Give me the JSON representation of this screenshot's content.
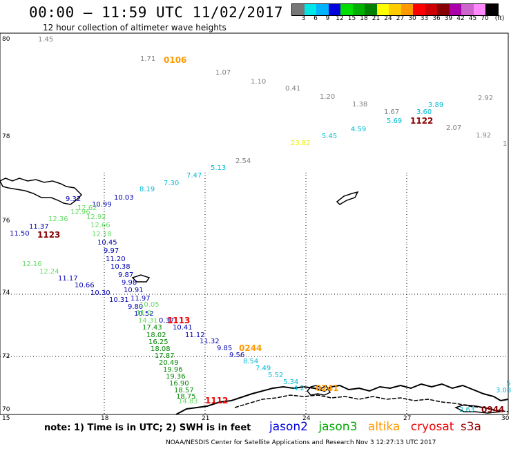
{
  "title": "00:00 – 11:59 UTC 11/02/2017",
  "subtitle": "12 hour collection of altimeter wave heights",
  "colorbar": {
    "colors": [
      "#777777",
      "#00e5e5",
      "#00b3ff",
      "#0000dd",
      "#00dd00",
      "#00b000",
      "#008000",
      "#ffff00",
      "#ffcc00",
      "#ff9900",
      "#ff0000",
      "#cc0000",
      "#880000",
      "#aa00aa",
      "#cc66cc",
      "#ff88ff",
      "#000000"
    ],
    "labels": [
      "3",
      "6",
      "9",
      "12",
      "15",
      "18",
      "21",
      "24",
      "27",
      "30",
      "33",
      "36",
      "39",
      "42",
      "45",
      "70",
      "(ft)"
    ]
  },
  "axes": {
    "lat_labels": [
      "80",
      "78",
      "76",
      "74",
      "72",
      "70"
    ],
    "lon_labels": [
      "15",
      "18",
      "21",
      "24",
      "27",
      "30"
    ]
  },
  "satellite_colors": {
    "gray": "#808080",
    "cyan": "#00bcd4",
    "yellow": "#eded00",
    "navy": "#0000b0",
    "lightgreen": "#66dd66",
    "green": "#008800",
    "orange": "#ff9900",
    "darkred": "#880000",
    "red": "#ee0000"
  },
  "observations": [
    {
      "v": "1.45",
      "c": "gray"
    },
    {
      "v": "1.71",
      "c": "gray"
    },
    {
      "v": "1.07",
      "c": "gray"
    },
    {
      "v": "1.10",
      "c": "gray"
    },
    {
      "v": "0.41",
      "c": "gray"
    },
    {
      "v": "1.20",
      "c": "gray"
    },
    {
      "v": "1.38",
      "c": "gray"
    },
    {
      "v": "1.67",
      "c": "gray"
    },
    {
      "v": "2.92",
      "c": "gray"
    },
    {
      "v": "2.07",
      "c": "gray"
    },
    {
      "v": "1.92",
      "c": "gray"
    },
    {
      "v": "1",
      "c": "gray"
    },
    {
      "v": "2.54",
      "c": "gray"
    },
    {
      "v": "3.60",
      "c": "cyan"
    },
    {
      "v": "3.89",
      "c": "cyan"
    },
    {
      "v": "5.69",
      "c": "cyan"
    },
    {
      "v": "4.59",
      "c": "cyan"
    },
    {
      "v": "5.45",
      "c": "cyan"
    },
    {
      "v": "23.82",
      "c": "yellow"
    },
    {
      "v": "5.13",
      "c": "cyan"
    },
    {
      "v": "7.47",
      "c": "cyan"
    },
    {
      "v": "7.30",
      "c": "cyan"
    },
    {
      "v": "8.19",
      "c": "cyan"
    },
    {
      "v": "10.03",
      "c": "navy"
    },
    {
      "v": "10.99",
      "c": "navy"
    },
    {
      "v": "9.32",
      "c": "navy"
    },
    {
      "v": "12.62",
      "c": "lightgreen"
    },
    {
      "v": "12.96",
      "c": "lightgreen"
    },
    {
      "v": "12.92",
      "c": "lightgreen"
    },
    {
      "v": "12.36",
      "c": "lightgreen"
    },
    {
      "v": "12.66",
      "c": "lightgreen"
    },
    {
      "v": "12.18",
      "c": "lightgreen"
    },
    {
      "v": "11.37",
      "c": "navy"
    },
    {
      "v": "11.50",
      "c": "navy"
    },
    {
      "v": "10.45",
      "c": "navy"
    },
    {
      "v": "9.97",
      "c": "navy"
    },
    {
      "v": "11.20",
      "c": "navy"
    },
    {
      "v": "10.38",
      "c": "navy"
    },
    {
      "v": "9.87",
      "c": "navy"
    },
    {
      "v": "9.98",
      "c": "navy"
    },
    {
      "v": "10.91",
      "c": "navy"
    },
    {
      "v": "11.97",
      "c": "navy"
    },
    {
      "v": "10.31",
      "c": "navy"
    },
    {
      "v": "9.80",
      "c": "navy"
    },
    {
      "v": "10.52",
      "c": "navy"
    },
    {
      "v": "10.41",
      "c": "navy"
    },
    {
      "v": "11.12",
      "c": "navy"
    },
    {
      "v": "11.32",
      "c": "navy"
    },
    {
      "v": "9.85",
      "c": "navy"
    },
    {
      "v": "9.56",
      "c": "navy"
    },
    {
      "v": "12.16",
      "c": "lightgreen"
    },
    {
      "v": "12.24",
      "c": "lightgreen"
    },
    {
      "v": "11.17",
      "c": "navy"
    },
    {
      "v": "10.66",
      "c": "navy"
    },
    {
      "v": "10.30",
      "c": "navy"
    },
    {
      "v": "10.05",
      "c": "lightgreen"
    },
    {
      "v": "11.0",
      "c": "lightgreen"
    },
    {
      "v": "14.31",
      "c": "lightgreen"
    },
    {
      "v": "0.37",
      "c": "navy"
    },
    {
      "v": "17.43",
      "c": "green"
    },
    {
      "v": "18.02",
      "c": "green"
    },
    {
      "v": "16.25",
      "c": "green"
    },
    {
      "v": "18.08",
      "c": "green"
    },
    {
      "v": "17.87",
      "c": "green"
    },
    {
      "v": "20.49",
      "c": "green"
    },
    {
      "v": "19.96",
      "c": "green"
    },
    {
      "v": "19.36",
      "c": "green"
    },
    {
      "v": "16.90",
      "c": "green"
    },
    {
      "v": "18.57",
      "c": "green"
    },
    {
      "v": "18.75",
      "c": "green"
    },
    {
      "v": "14.83",
      "c": "lightgreen"
    },
    {
      "v": "8.54",
      "c": "cyan"
    },
    {
      "v": "7.49",
      "c": "cyan"
    },
    {
      "v": "5.52",
      "c": "cyan"
    },
    {
      "v": "5.34",
      "c": "cyan"
    },
    {
      "v": "4.2",
      "c": "cyan"
    },
    {
      "v": "5",
      "c": "cyan"
    },
    {
      "v": "3.08",
      "c": "cyan"
    },
    {
      "v": "2.63",
      "c": "cyan"
    }
  ],
  "time_stamps": [
    {
      "v": "0106",
      "c": "orange"
    },
    {
      "v": "1122",
      "c": "darkred"
    },
    {
      "v": "1123",
      "c": "darkred"
    },
    {
      "v": "1113",
      "c": "red"
    },
    {
      "v": "0244",
      "c": "orange"
    },
    {
      "v": "0241",
      "c": "orange"
    },
    {
      "v": "1112",
      "c": "red"
    },
    {
      "v": "0944",
      "c": "darkred"
    }
  ],
  "note": "note: 1) Time is in UTC; 2) SWH is in feet",
  "legend": [
    {
      "label": "jason2",
      "color": "#0000dd"
    },
    {
      "label": "jason3",
      "color": "#00aa00"
    },
    {
      "label": "altika",
      "color": "#ff9900"
    },
    {
      "label": "cryosat",
      "color": "#ee0000"
    },
    {
      "label": "s3a",
      "color": "#990000"
    }
  ],
  "credit": "NOAA/NESDIS Center for Satellite Applications and Research   Nov  3 12:27:13 UTC 2017"
}
